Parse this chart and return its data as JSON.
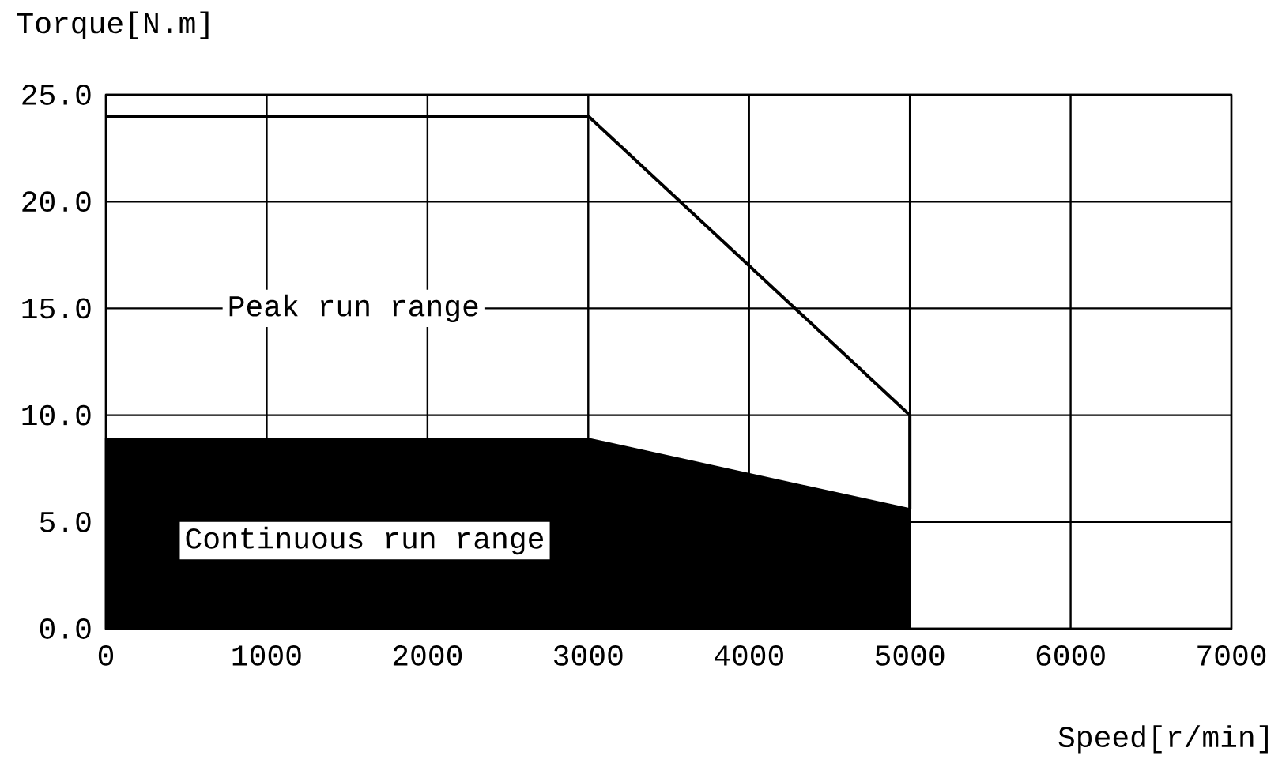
{
  "chart_data": {
    "type": "area",
    "xlabel": "Speed[r/min]",
    "ylabel": "Torque[N.m]",
    "xlim": [
      0,
      7000
    ],
    "ylim": [
      0,
      25
    ],
    "xticks": [
      0,
      1000,
      2000,
      3000,
      4000,
      5000,
      6000,
      7000
    ],
    "yticks": [
      {
        "value": 0,
        "label": "0.0"
      },
      {
        "value": 5,
        "label": "5.0"
      },
      {
        "value": 10,
        "label": "10.0"
      },
      {
        "value": 15,
        "label": "15.0"
      },
      {
        "value": 20,
        "label": "20.0"
      },
      {
        "value": 25,
        "label": "25.0"
      }
    ],
    "grid": true,
    "series": [
      {
        "color": "#000000",
        "x": [
          0,
          3000,
          5000
        ],
        "values": [
          8.9,
          8.9,
          5.6
        ]
      },
      {
        "type": "line",
        "color": "#000000",
        "x": [
          0,
          3000,
          5000,
          5000
        ],
        "values": [
          24,
          24,
          10,
          5.6
        ]
      }
    ],
    "annotations": [
      "Peak run range",
      "Continuous run range"
    ]
  }
}
